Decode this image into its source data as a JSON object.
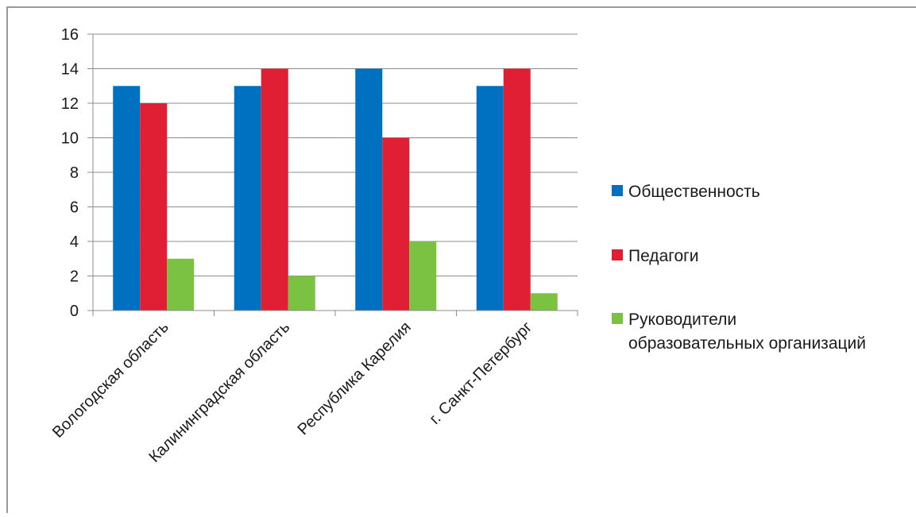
{
  "chart_data": {
    "type": "bar",
    "categories": [
      "Вологодская область",
      "Калининградская область",
      "Республика Карелия",
      "г. Санкт-Петербург"
    ],
    "series": [
      {
        "name": "Общественность",
        "color": "#0070c0",
        "values": [
          13,
          13,
          14,
          13
        ]
      },
      {
        "name": "Педагоги",
        "color": "#e01f35",
        "values": [
          12,
          14,
          10,
          14
        ]
      },
      {
        "name": "Руководители образовательных организаций",
        "color": "#7cc242",
        "values": [
          3,
          2,
          4,
          1
        ]
      }
    ],
    "y_ticks": [
      "0",
      "2",
      "4",
      "6",
      "8",
      "10",
      "12",
      "14",
      "16"
    ],
    "ylim": [
      0,
      16
    ],
    "grid": true,
    "legend_position": "right"
  }
}
